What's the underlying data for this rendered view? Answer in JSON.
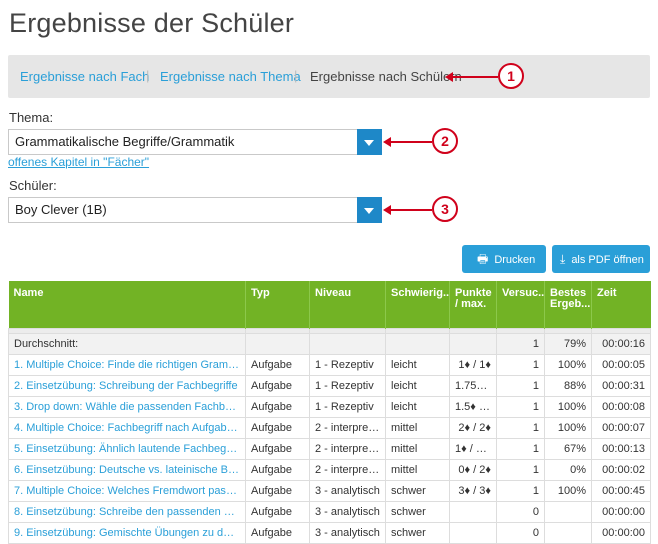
{
  "page_title": "Ergebnisse der Schüler",
  "tabs": [
    {
      "label": "Ergebnisse nach Fach",
      "active": false
    },
    {
      "label": "Ergebnisse nach Thema",
      "active": false
    },
    {
      "label": "Ergebnisse nach Schülern",
      "active": true
    }
  ],
  "callouts": [
    "1",
    "2",
    "3"
  ],
  "topic": {
    "label": "Thema:",
    "value": "Grammatikalische Begriffe/Grammatik",
    "link": "offenes Kapitel in \"Fächer\""
  },
  "student": {
    "label": "Schüler:",
    "value": "Boy Clever (1B)"
  },
  "buttons": {
    "print": "Drucken",
    "pdf": "als PDF öffnen"
  },
  "table": {
    "headers": [
      "Name",
      "Typ",
      "Niveau",
      "Schwierig...",
      "Punkte / max.",
      "Versuc...",
      "Bestes Ergeb...",
      "Zeit"
    ],
    "average": {
      "label": "Durchschnitt:",
      "attempts": "1",
      "best": "79%",
      "time": "00:00:16"
    },
    "rows": [
      {
        "name": "1. Multiple Choice: Finde die richtigen Grammatik...",
        "type": "Aufgabe",
        "level": "1 - Rezeptiv",
        "difficulty": "leicht",
        "points": "1♦ / 1♦",
        "attempts": "1",
        "best": "100%",
        "time": "00:00:05"
      },
      {
        "name": "2. Einsetzübung: Schreibung der Fachbegriffe",
        "type": "Aufgabe",
        "level": "1 - Rezeptiv",
        "difficulty": "leicht",
        "points": "1.75♦ / ...",
        "attempts": "1",
        "best": "88%",
        "time": "00:00:31"
      },
      {
        "name": "3. Drop down: Wähle die passenden Fachbegriffe",
        "type": "Aufgabe",
        "level": "1 - Rezeptiv",
        "difficulty": "leicht",
        "points": "1.5♦ / 1...",
        "attempts": "1",
        "best": "100%",
        "time": "00:00:08"
      },
      {
        "name": "4. Multiple Choice: Fachbegriff nach Aufgabe erk...",
        "type": "Aufgabe",
        "level": "2 - interpreta...",
        "difficulty": "mittel",
        "points": "2♦ / 2♦",
        "attempts": "1",
        "best": "100%",
        "time": "00:00:07"
      },
      {
        "name": "5. Einsetzübung: Ähnlich lautende Fachbegriffe u...",
        "type": "Aufgabe",
        "level": "2 - interpreta...",
        "difficulty": "mittel",
        "points": "1♦ / 1.5♦",
        "attempts": "1",
        "best": "67%",
        "time": "00:00:13"
      },
      {
        "name": "6. Einsetzübung: Deutsche vs. lateinische Begriff...",
        "type": "Aufgabe",
        "level": "2 - interpreta...",
        "difficulty": "mittel",
        "points": "0♦ / 2♦",
        "attempts": "1",
        "best": "0%",
        "time": "00:00:02"
      },
      {
        "name": "7. Multiple Choice: Welches Fremdwort passt zu...",
        "type": "Aufgabe",
        "level": "3 - analytisch",
        "difficulty": "schwer",
        "points": "3♦ / 3♦",
        "attempts": "1",
        "best": "100%",
        "time": "00:00:45"
      },
      {
        "name": "8. Einsetzübung: Schreibe den passenden Fachbe...",
        "type": "Aufgabe",
        "level": "3 - analytisch",
        "difficulty": "schwer",
        "points": "",
        "attempts": "0",
        "best": "",
        "time": "00:00:00"
      },
      {
        "name": "9. Einsetzübung: Gemischte Übungen zu den Fac...",
        "type": "Aufgabe",
        "level": "3 - analytisch",
        "difficulty": "schwer",
        "points": "",
        "attempts": "0",
        "best": "",
        "time": "00:00:00"
      }
    ]
  },
  "colors": {
    "link": "#2a9fd8",
    "header_green": "#72b325",
    "button_blue": "#2a9fd8",
    "callout_red": "#d0011b"
  }
}
